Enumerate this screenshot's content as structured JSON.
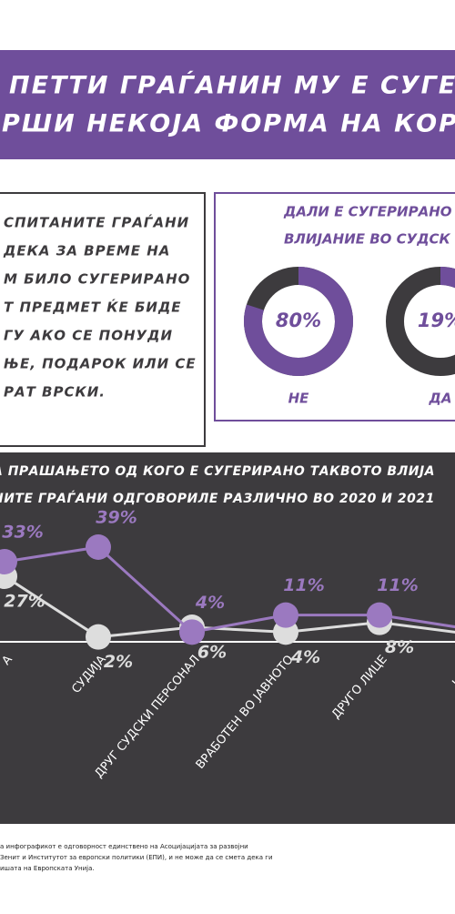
{
  "banner": {
    "lines": [
      "ПЕТТИ ГРАЃАНИН МУ Е СУГЕ",
      "РШИ НЕКОЈА ФОРМА НА КОР"
    ]
  },
  "intro": {
    "lines": [
      "СПИТАНИТЕ ГРАЃАНИ",
      "ДЕКА ЗА ВРЕМЕ НА",
      "М БИЛО СУГЕРИРАНО",
      "Т ПРЕДМЕТ ЌЕ БИДЕ",
      "ГУ АКО СЕ ПОНУДИ",
      "ЊЕ, ПОДАРОК ИЛИ СЕ",
      "РАТ ВРСКИ."
    ]
  },
  "footer": {
    "lines": [
      "а инфографикот е одговорност единствено на Асоцијацијата за развојни",
      "Зенит и Институтот за европски политики (ЕПИ), и не може да се смета дека ги",
      "ишата на Европската Унија."
    ]
  },
  "chart_data": [
    {
      "type": "donut",
      "title": [
        "ДАЛИ Е СУГЕРИРАНО",
        "ВЛИЈАНИЕ ВО СУДСК"
      ],
      "categories": [
        "НЕ",
        "ДА"
      ],
      "values": [
        80,
        19
      ],
      "value_labels": [
        "80%",
        "19%"
      ],
      "color": "#6f4e9b",
      "track_color": "#3d3b3e"
    },
    {
      "type": "line",
      "title": [
        "А ПРАШАЊЕТО ОД КОГО Е СУГЕРИРАНО ТАКВОТО ВЛИЈА",
        "НИТЕ ГРАЃАНИ ОДГОВОРИЛЕ РАЗЛИЧНО ВО 2020 И 2021"
      ],
      "categories": [
        "А",
        "СУДИЈА",
        "ДРУГ СУДСКИ ПЕРСОНАЛ",
        "ВРАБОТЕН ВО ЈАВНОТО",
        "ДРУГО ЛИЦЕ",
        "НЕ ЗН"
      ],
      "series": [
        {
          "color": "#9b79c0",
          "values": [
            33,
            39,
            4,
            11,
            11,
            5
          ],
          "value_labels": [
            "33%",
            "39%",
            "4%",
            "11%",
            "11%",
            null
          ]
        },
        {
          "color": "#dddddd",
          "values": [
            27,
            2,
            6,
            4,
            8,
            3
          ],
          "value_labels": [
            "27%",
            "2%",
            "6%",
            "4%",
            "8%",
            null
          ]
        }
      ],
      "ylim": [
        0,
        45
      ]
    }
  ]
}
